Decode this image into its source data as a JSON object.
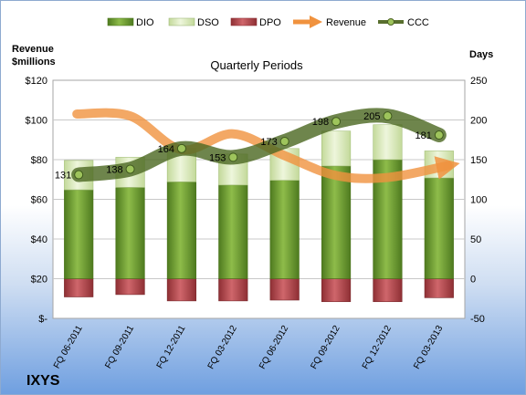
{
  "chart_data": {
    "type": "bar",
    "title": "Quarterly Periods",
    "company": "IXYS",
    "y_left_label": "Revenue\n$millions",
    "y_right_label": "Days",
    "y_left_ticks": [
      "$-",
      "$20",
      "$40",
      "$60",
      "$80",
      "$100",
      "$120"
    ],
    "y_right_ticks": [
      "-50",
      "0",
      "50",
      "100",
      "150",
      "200",
      "250"
    ],
    "y_left_range": [
      0,
      120
    ],
    "y_right_range": [
      -50,
      250
    ],
    "categories": [
      "FQ 06-2011",
      "FQ 09-2011",
      "FQ 12-2011",
      "FQ 03-2012",
      "FQ 06-2012",
      "FQ 09-2012",
      "FQ 12-2012",
      "FQ 03-2013"
    ],
    "legend_position": "top",
    "series": [
      {
        "name": "DIO",
        "type": "stacked-bar",
        "axis": "right",
        "color": "#77a33a",
        "values": [
          112,
          115,
          122,
          118,
          124,
          142,
          150,
          127
        ]
      },
      {
        "name": "DSO",
        "type": "stacked-bar",
        "axis": "right",
        "color": "#dcebbd",
        "values": [
          37,
          38,
          42,
          39,
          40,
          44,
          44,
          34
        ]
      },
      {
        "name": "DPO",
        "type": "bar-negative",
        "axis": "right",
        "color": "#b9484d",
        "values": [
          -23,
          -20,
          -28,
          -28,
          -27,
          -29,
          -29,
          -24
        ]
      },
      {
        "name": "Revenue",
        "type": "line",
        "axis": "left",
        "color": "#f0923e",
        "values": [
          103,
          102,
          85,
          93,
          82,
          72,
          71,
          77
        ]
      },
      {
        "name": "CCC",
        "type": "line",
        "axis": "right",
        "color": "#586f2e",
        "values": [
          131,
          138,
          164,
          153,
          173,
          198,
          205,
          181
        ]
      }
    ],
    "ccc_labels": [
      "131",
      "138",
      "164",
      "153",
      "173",
      "198",
      "205",
      "181"
    ]
  }
}
